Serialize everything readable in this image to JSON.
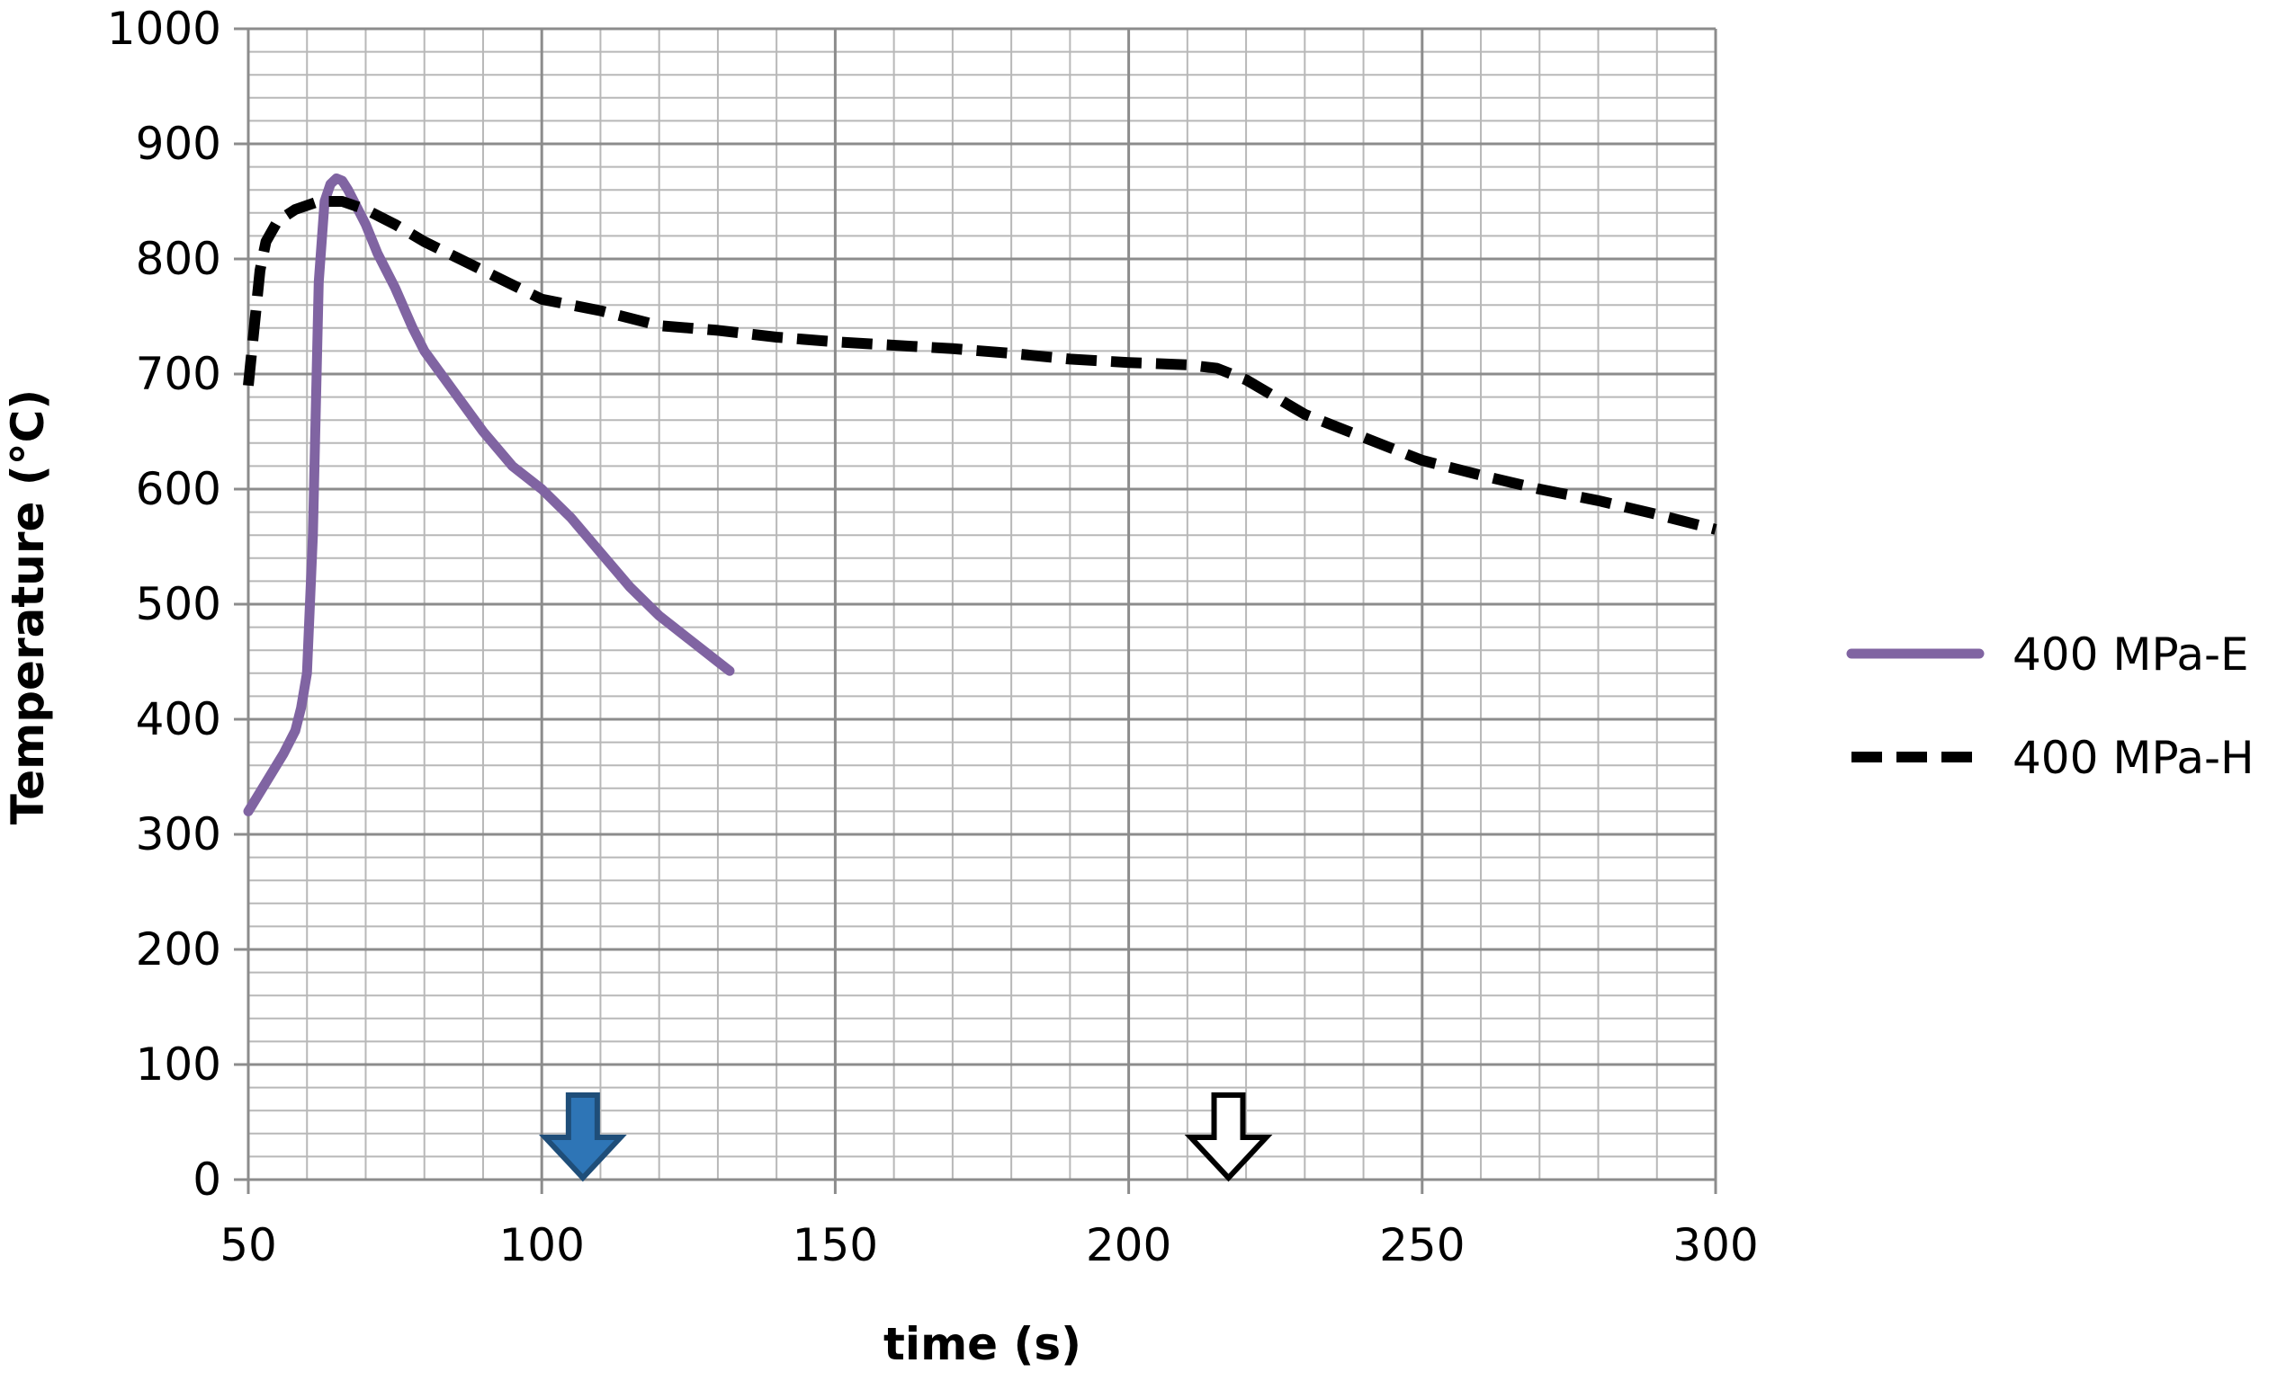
{
  "chart_data": {
    "type": "line",
    "title": "",
    "xlabel": "time (s)",
    "ylabel": "Temperature (°C)",
    "xlim": [
      50,
      300
    ],
    "ylim": [
      0,
      1000
    ],
    "x_ticks": [
      50,
      100,
      150,
      200,
      250,
      300
    ],
    "y_ticks": [
      0,
      100,
      200,
      300,
      400,
      500,
      600,
      700,
      800,
      900,
      1000
    ],
    "minor_grid": {
      "x_step": 10,
      "y_step": 20
    },
    "grid": true,
    "legend_position": "right",
    "series": [
      {
        "name": "400 MPa-E",
        "color": "#8064A2",
        "style": "solid",
        "x": [
          50,
          53,
          56,
          58,
          59,
          60,
          61,
          62,
          63,
          64,
          65,
          66,
          67,
          68,
          70,
          72,
          75,
          78,
          80,
          85,
          90,
          95,
          100,
          105,
          110,
          115,
          120,
          125,
          130,
          132
        ],
        "y": [
          320,
          345,
          370,
          390,
          410,
          440,
          560,
          780,
          850,
          865,
          870,
          868,
          860,
          850,
          830,
          805,
          775,
          740,
          720,
          685,
          650,
          620,
          600,
          575,
          545,
          515,
          490,
          470,
          450,
          442
        ]
      },
      {
        "name": "400 MPa-H",
        "color": "#000000",
        "style": "dashed",
        "x": [
          50,
          51,
          52,
          53,
          55,
          58,
          62,
          66,
          70,
          75,
          80,
          90,
          100,
          110,
          120,
          130,
          140,
          150,
          160,
          170,
          180,
          190,
          200,
          210,
          215,
          220,
          230,
          240,
          250,
          260,
          270,
          280,
          290,
          300
        ],
        "y": [
          690,
          740,
          790,
          815,
          833,
          843,
          850,
          850,
          843,
          830,
          815,
          790,
          765,
          755,
          742,
          738,
          732,
          728,
          725,
          722,
          718,
          713,
          710,
          708,
          705,
          695,
          665,
          645,
          625,
          612,
          600,
          590,
          578,
          565
        ]
      }
    ],
    "annotations": [
      {
        "type": "down-arrow",
        "x": 107,
        "fill": "#2E75B6",
        "stroke": "#1F4E79"
      },
      {
        "type": "down-arrow",
        "x": 217,
        "fill": "#FFFFFF",
        "stroke": "#000000"
      }
    ]
  }
}
